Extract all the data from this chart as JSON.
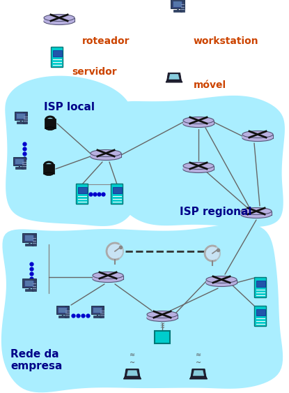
{
  "bg_color": "#ffffff",
  "blob_color": "#aaeeff",
  "router_color": "#b8b0e0",
  "router_edge": "#555577",
  "server_color": "#00cccc",
  "server_edge": "#007777",
  "line_color": "#666666",
  "dot_color": "#0000cc",
  "label_color": "#000088",
  "text_color": "#cc4400",
  "isp_local_label": "ISP local",
  "isp_regional_label": "ISP regional",
  "rede_empresa_label": "Rede da\nempresa",
  "legend_roteador": "roteador",
  "legend_workstation": "workstation",
  "legend_servidor": "servidor",
  "legend_movel": "móvel"
}
